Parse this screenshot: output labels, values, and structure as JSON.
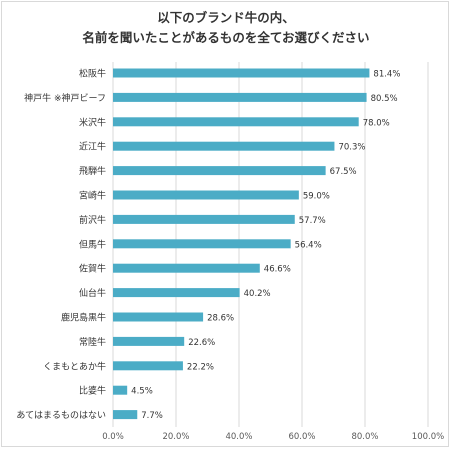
{
  "chart_data": {
    "type": "bar",
    "orientation": "horizontal",
    "title": [
      "以下のブランド牛の内、",
      "名前を聞いたことがあるものを全てお選びください"
    ],
    "categories": [
      "松阪牛",
      "神戸牛 ※神戸ビーフ",
      "米沢牛",
      "近江牛",
      "飛騨牛",
      "宮崎牛",
      "前沢牛",
      "但馬牛",
      "佐賀牛",
      "仙台牛",
      "鹿児島黒牛",
      "常陸牛",
      "くまもとあか牛",
      "比婆牛",
      "あてはまるものはない"
    ],
    "values": [
      81.4,
      80.5,
      78.0,
      70.3,
      67.5,
      59.0,
      57.7,
      56.4,
      46.6,
      40.2,
      28.6,
      22.6,
      22.2,
      4.5,
      7.7
    ],
    "value_labels": [
      "81.4%",
      "80.5%",
      "78.0%",
      "70.3%",
      "67.5%",
      "59.0%",
      "57.7%",
      "56.4%",
      "46.6%",
      "40.2%",
      "28.6%",
      "22.6%",
      "22.2%",
      "4.5%",
      "7.7%"
    ],
    "xlim": [
      0,
      100
    ],
    "xticks": [
      "0.0%",
      "20.0%",
      "40.0%",
      "60.0%",
      "80.0%",
      "100.0%"
    ],
    "grid": true,
    "bar_color": "#4bacc6"
  }
}
